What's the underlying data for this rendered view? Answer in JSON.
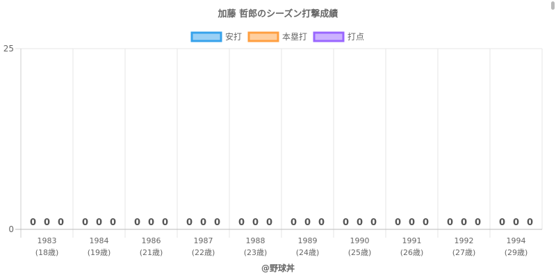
{
  "chart_data": {
    "type": "bar",
    "title": "加藤 哲郎のシーズン打撃成績",
    "categories": [
      "1983",
      "1984",
      "1986",
      "1987",
      "1988",
      "1989",
      "1990",
      "1991",
      "1992",
      "1994"
    ],
    "sublabels": [
      "(18歳)",
      "(19歳)",
      "(21歳)",
      "(22歳)",
      "(23歳)",
      "(24歳)",
      "(25歳)",
      "(26歳)",
      "(27歳)",
      "(29歳)"
    ],
    "series": [
      {
        "name": "安打",
        "values": [
          0,
          0,
          0,
          0,
          0,
          0,
          0,
          0,
          0,
          0
        ],
        "color": "#36a2eb",
        "fill": "#9ad0f5"
      },
      {
        "name": "本塁打",
        "values": [
          0,
          0,
          0,
          0,
          0,
          0,
          0,
          0,
          0,
          0
        ],
        "color": "#ff9f40",
        "fill": "#ffcf9f"
      },
      {
        "name": "打点",
        "values": [
          0,
          0,
          0,
          0,
          0,
          0,
          0,
          0,
          0,
          0
        ],
        "color": "#9966ff",
        "fill": "#ccb2ff"
      }
    ],
    "ylim": [
      0,
      25
    ],
    "yticks": [
      "0",
      "25"
    ],
    "legend": "top",
    "grid": true
  },
  "footer": {
    "credit": "@野球丼"
  }
}
